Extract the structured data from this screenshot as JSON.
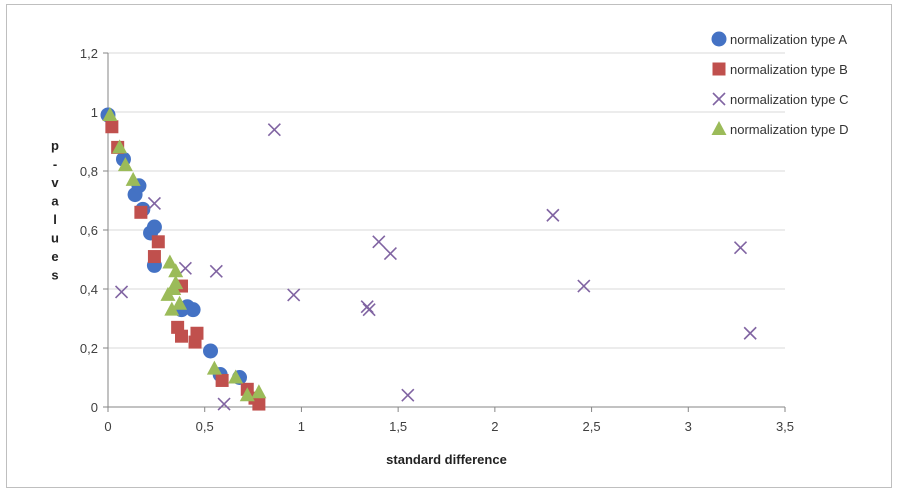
{
  "chart_data": {
    "type": "scatter",
    "xlabel": "standard difference",
    "ylabel": "p-values",
    "xlim": [
      0,
      3.5
    ],
    "ylim": [
      0,
      1.2
    ],
    "xticks": [
      0,
      0.5,
      1,
      1.5,
      2,
      2.5,
      3,
      3.5
    ],
    "yticks": [
      0,
      0.2,
      0.4,
      0.6,
      0.8,
      1,
      1.2
    ],
    "xtick_labels": [
      "0",
      "0,5",
      "1",
      "1,5",
      "2",
      "2,5",
      "3",
      "3,5"
    ],
    "ytick_labels": [
      "0",
      "0,2",
      "0,4",
      "0,6",
      "0,8",
      "1",
      "1,2"
    ],
    "grid": "horizontal",
    "legend_position": "right",
    "series": [
      {
        "name": "normalization type A",
        "marker": "circle",
        "color": "#4472c4",
        "points": [
          [
            0.0,
            0.99
          ],
          [
            0.08,
            0.84
          ],
          [
            0.14,
            0.72
          ],
          [
            0.16,
            0.75
          ],
          [
            0.18,
            0.67
          ],
          [
            0.22,
            0.59
          ],
          [
            0.24,
            0.61
          ],
          [
            0.24,
            0.48
          ],
          [
            0.38,
            0.33
          ],
          [
            0.41,
            0.34
          ],
          [
            0.44,
            0.33
          ],
          [
            0.53,
            0.19
          ],
          [
            0.58,
            0.11
          ],
          [
            0.68,
            0.1
          ]
        ]
      },
      {
        "name": "normalization type B",
        "marker": "square",
        "color": "#c0504d",
        "points": [
          [
            0.02,
            0.95
          ],
          [
            0.05,
            0.88
          ],
          [
            0.17,
            0.66
          ],
          [
            0.24,
            0.51
          ],
          [
            0.26,
            0.56
          ],
          [
            0.36,
            0.27
          ],
          [
            0.38,
            0.24
          ],
          [
            0.38,
            0.41
          ],
          [
            0.45,
            0.22
          ],
          [
            0.46,
            0.25
          ],
          [
            0.59,
            0.09
          ],
          [
            0.72,
            0.06
          ],
          [
            0.76,
            0.03
          ],
          [
            0.78,
            0.01
          ]
        ]
      },
      {
        "name": "normalization type C",
        "marker": "x",
        "color": "#8064a2",
        "points": [
          [
            0.07,
            0.39
          ],
          [
            0.24,
            0.69
          ],
          [
            0.4,
            0.47
          ],
          [
            0.56,
            0.46
          ],
          [
            0.6,
            0.01
          ],
          [
            0.86,
            0.94
          ],
          [
            0.96,
            0.38
          ],
          [
            1.34,
            0.34
          ],
          [
            1.35,
            0.33
          ],
          [
            1.4,
            0.56
          ],
          [
            1.46,
            0.52
          ],
          [
            1.55,
            0.04
          ],
          [
            2.3,
            0.65
          ],
          [
            2.46,
            0.41
          ],
          [
            3.27,
            0.54
          ],
          [
            3.32,
            0.25
          ]
        ]
      },
      {
        "name": "normalization type D",
        "marker": "triangle",
        "color": "#9bbb59",
        "points": [
          [
            0.01,
            0.99
          ],
          [
            0.06,
            0.88
          ],
          [
            0.09,
            0.82
          ],
          [
            0.13,
            0.77
          ],
          [
            0.31,
            0.38
          ],
          [
            0.32,
            0.49
          ],
          [
            0.33,
            0.33
          ],
          [
            0.34,
            0.4
          ],
          [
            0.35,
            0.46
          ],
          [
            0.35,
            0.42
          ],
          [
            0.37,
            0.35
          ],
          [
            0.55,
            0.13
          ],
          [
            0.66,
            0.1
          ],
          [
            0.72,
            0.04
          ],
          [
            0.78,
            0.05
          ]
        ]
      }
    ]
  }
}
